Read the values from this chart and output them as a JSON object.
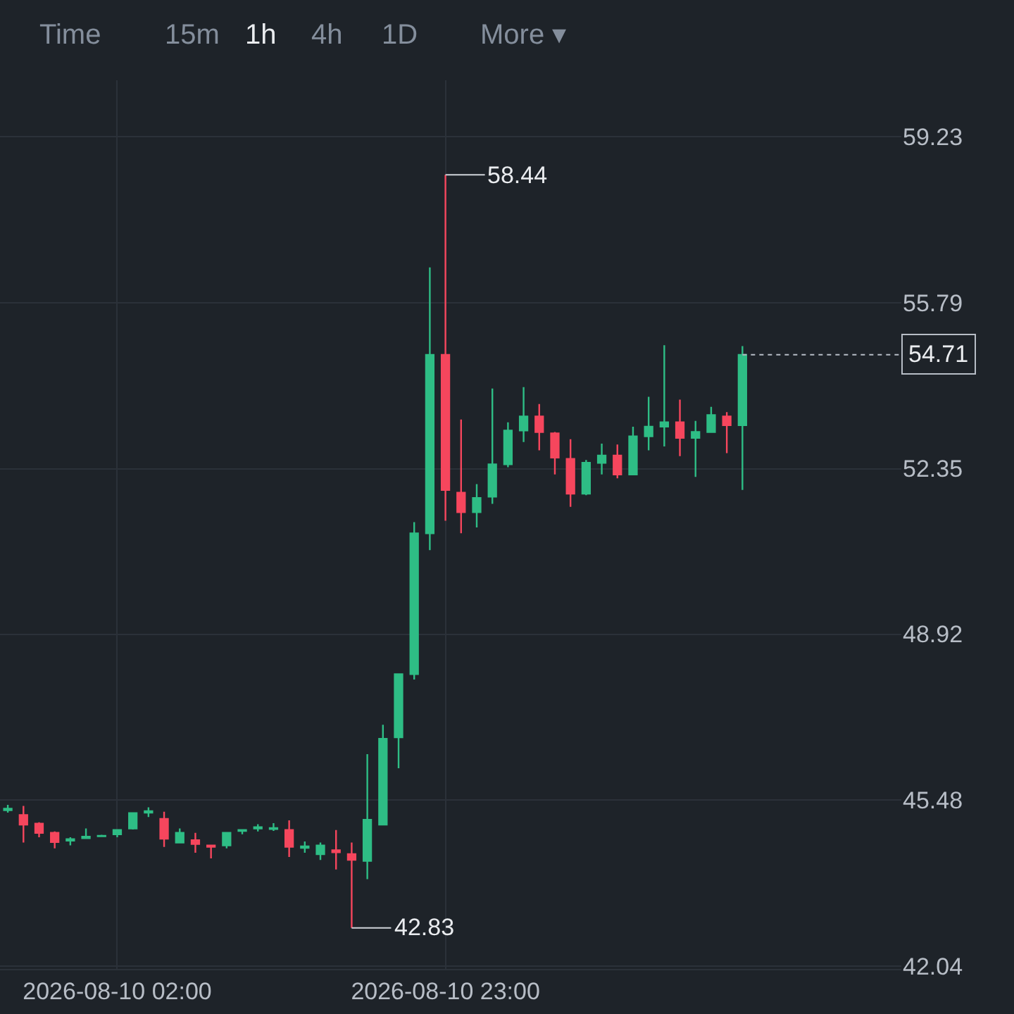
{
  "chart_data": {
    "type": "candlestick",
    "x": [
      "2026-08-09T19:00",
      "2026-08-09T20:00",
      "2026-08-09T21:00",
      "2026-08-09T22:00",
      "2026-08-09T23:00",
      "2026-08-10T00:00",
      "2026-08-10T01:00",
      "2026-08-10T02:00",
      "2026-08-10T03:00",
      "2026-08-10T04:00",
      "2026-08-10T05:00",
      "2026-08-10T06:00",
      "2026-08-10T07:00",
      "2026-08-10T08:00",
      "2026-08-10T09:00",
      "2026-08-10T10:00",
      "2026-08-10T11:00",
      "2026-08-10T12:00",
      "2026-08-10T13:00",
      "2026-08-10T14:00",
      "2026-08-10T15:00",
      "2026-08-10T16:00",
      "2026-08-10T17:00",
      "2026-08-10T18:00",
      "2026-08-10T19:00",
      "2026-08-10T20:00",
      "2026-08-10T21:00",
      "2026-08-10T22:00",
      "2026-08-10T23:00",
      "2026-08-11T00:00",
      "2026-08-11T01:00",
      "2026-08-11T02:00",
      "2026-08-11T03:00",
      "2026-08-11T04:00",
      "2026-08-11T05:00",
      "2026-08-11T06:00",
      "2026-08-11T07:00",
      "2026-08-11T08:00",
      "2026-08-11T09:00",
      "2026-08-11T10:00",
      "2026-08-11T11:00",
      "2026-08-11T12:00",
      "2026-08-11T13:00",
      "2026-08-11T14:00",
      "2026-08-11T15:00",
      "2026-08-11T16:00",
      "2026-08-11T17:00",
      "2026-08-11T18:00"
    ],
    "ohlc": [
      [
        45.27,
        45.38,
        45.22,
        45.3
      ],
      [
        45.17,
        45.36,
        44.6,
        44.97
      ],
      [
        44.99,
        45.02,
        44.71,
        44.8
      ],
      [
        44.8,
        44.83,
        44.48,
        44.61
      ],
      [
        44.64,
        44.71,
        44.54,
        44.67
      ],
      [
        44.69,
        44.89,
        44.68,
        44.72
      ],
      [
        44.73,
        44.76,
        44.72,
        44.74
      ],
      [
        44.77,
        44.87,
        44.71,
        44.86
      ],
      [
        44.89,
        45.22,
        44.87,
        45.21
      ],
      [
        45.22,
        45.33,
        45.13,
        45.25
      ],
      [
        45.09,
        45.24,
        44.51,
        44.68
      ],
      [
        44.6,
        44.89,
        44.59,
        44.8
      ],
      [
        44.65,
        44.8,
        44.39,
        44.57
      ],
      [
        44.54,
        44.55,
        44.27,
        44.51
      ],
      [
        44.54,
        44.8,
        44.48,
        44.8
      ],
      [
        44.84,
        44.87,
        44.77,
        44.86
      ],
      [
        44.89,
        44.98,
        44.83,
        44.92
      ],
      [
        44.88,
        45.0,
        44.84,
        44.9
      ],
      [
        44.86,
        45.06,
        44.3,
        44.51
      ],
      [
        44.49,
        44.62,
        44.39,
        44.52
      ],
      [
        44.36,
        44.6,
        44.24,
        44.54
      ],
      [
        44.44,
        44.86,
        44.04,
        44.4
      ],
      [
        44.36,
        44.6,
        42.83,
        44.24
      ],
      [
        44.22,
        46.43,
        43.84,
        45.07
      ],
      [
        44.97,
        47.04,
        44.97,
        46.75
      ],
      [
        46.78,
        48.09,
        46.14,
        48.09
      ],
      [
        48.09,
        51.24,
        47.98,
        51.01
      ],
      [
        51.01,
        56.52,
        50.66,
        54.71
      ],
      [
        54.71,
        58.44,
        51.27,
        51.91
      ],
      [
        51.85,
        53.37,
        51.01,
        51.45
      ],
      [
        51.45,
        52.03,
        51.13,
        51.74
      ],
      [
        51.77,
        54.01,
        51.62,
        52.44
      ],
      [
        52.44,
        53.31,
        52.38,
        53.14
      ],
      [
        53.14,
        54.04,
        52.9,
        53.43
      ],
      [
        53.43,
        53.69,
        52.73,
        53.11
      ],
      [
        53.08,
        53.11,
        52.23,
        52.58
      ],
      [
        52.55,
        52.96,
        51.56,
        51.83
      ],
      [
        51.83,
        52.53,
        51.8,
        52.47
      ],
      [
        52.47,
        52.87,
        52.23,
        52.62
      ],
      [
        52.62,
        52.85,
        52.15,
        52.23
      ],
      [
        52.23,
        53.22,
        52.23,
        53.02
      ],
      [
        53.02,
        53.84,
        52.73,
        53.22
      ],
      [
        53.22,
        54.91,
        52.81,
        53.31
      ],
      [
        53.31,
        53.78,
        52.61,
        52.99
      ],
      [
        52.99,
        53.34,
        52.18,
        53.11
      ],
      [
        53.11,
        53.63,
        53.11,
        53.46
      ],
      [
        53.43,
        53.52,
        52.67,
        53.25
      ],
      [
        53.25,
        54.89,
        51.91,
        54.71
      ]
    ],
    "colors": [
      "#2ebd85",
      "#f6465d",
      "#f6465d",
      "#f6465d",
      "#2ebd85",
      "#2ebd85",
      "#2ebd85",
      "#2ebd85",
      "#2ebd85",
      "#2ebd85",
      "#f6465d",
      "#2ebd85",
      "#f6465d",
      "#f6465d",
      "#2ebd85",
      "#2ebd85",
      "#2ebd85",
      "#2ebd85",
      "#f6465d",
      "#2ebd85",
      "#2ebd85",
      "#f6465d",
      "#f6465d",
      "#2ebd85",
      "#2ebd85",
      "#2ebd85",
      "#2ebd85",
      "#2ebd85",
      "#f6465d",
      "#f6465d",
      "#2ebd85",
      "#2ebd85",
      "#2ebd85",
      "#2ebd85",
      "#f6465d",
      "#f6465d",
      "#f6465d",
      "#2ebd85",
      "#2ebd85",
      "#f6465d",
      "#2ebd85",
      "#2ebd85",
      "#2ebd85",
      "#f6465d",
      "#2ebd85",
      "#2ebd85",
      "#f6465d",
      "#2ebd85"
    ],
    "xlim": [
      "2026-08-09T18:30",
      "2026-08-12T04:10"
    ],
    "xticks": [
      {
        "value": "2026-08-10T02:00",
        "label": "2026-08-10 02:00"
      },
      {
        "value": "2026-08-10T23:00",
        "label": "2026-08-10 23:00"
      }
    ],
    "ylim": [
      41.98,
      60.4
    ],
    "yticks": [
      42.04,
      45.48,
      48.92,
      52.35,
      55.79,
      59.23
    ],
    "grid": true,
    "ref_lines": [
      {
        "axis": "y",
        "value": 54.71,
        "label": "54.71",
        "line_style": "dashed",
        "color": "#b7bdc6"
      }
    ],
    "annotations": [
      {
        "text": "58.44",
        "x": "2026-08-10T23:00",
        "y": 58.44
      },
      {
        "text": "42.83",
        "x": "2026-08-10T17:00",
        "y": 42.83
      },
      "Time",
      "15m",
      "1h",
      "4h",
      "1D",
      "More ▾"
    ]
  }
}
